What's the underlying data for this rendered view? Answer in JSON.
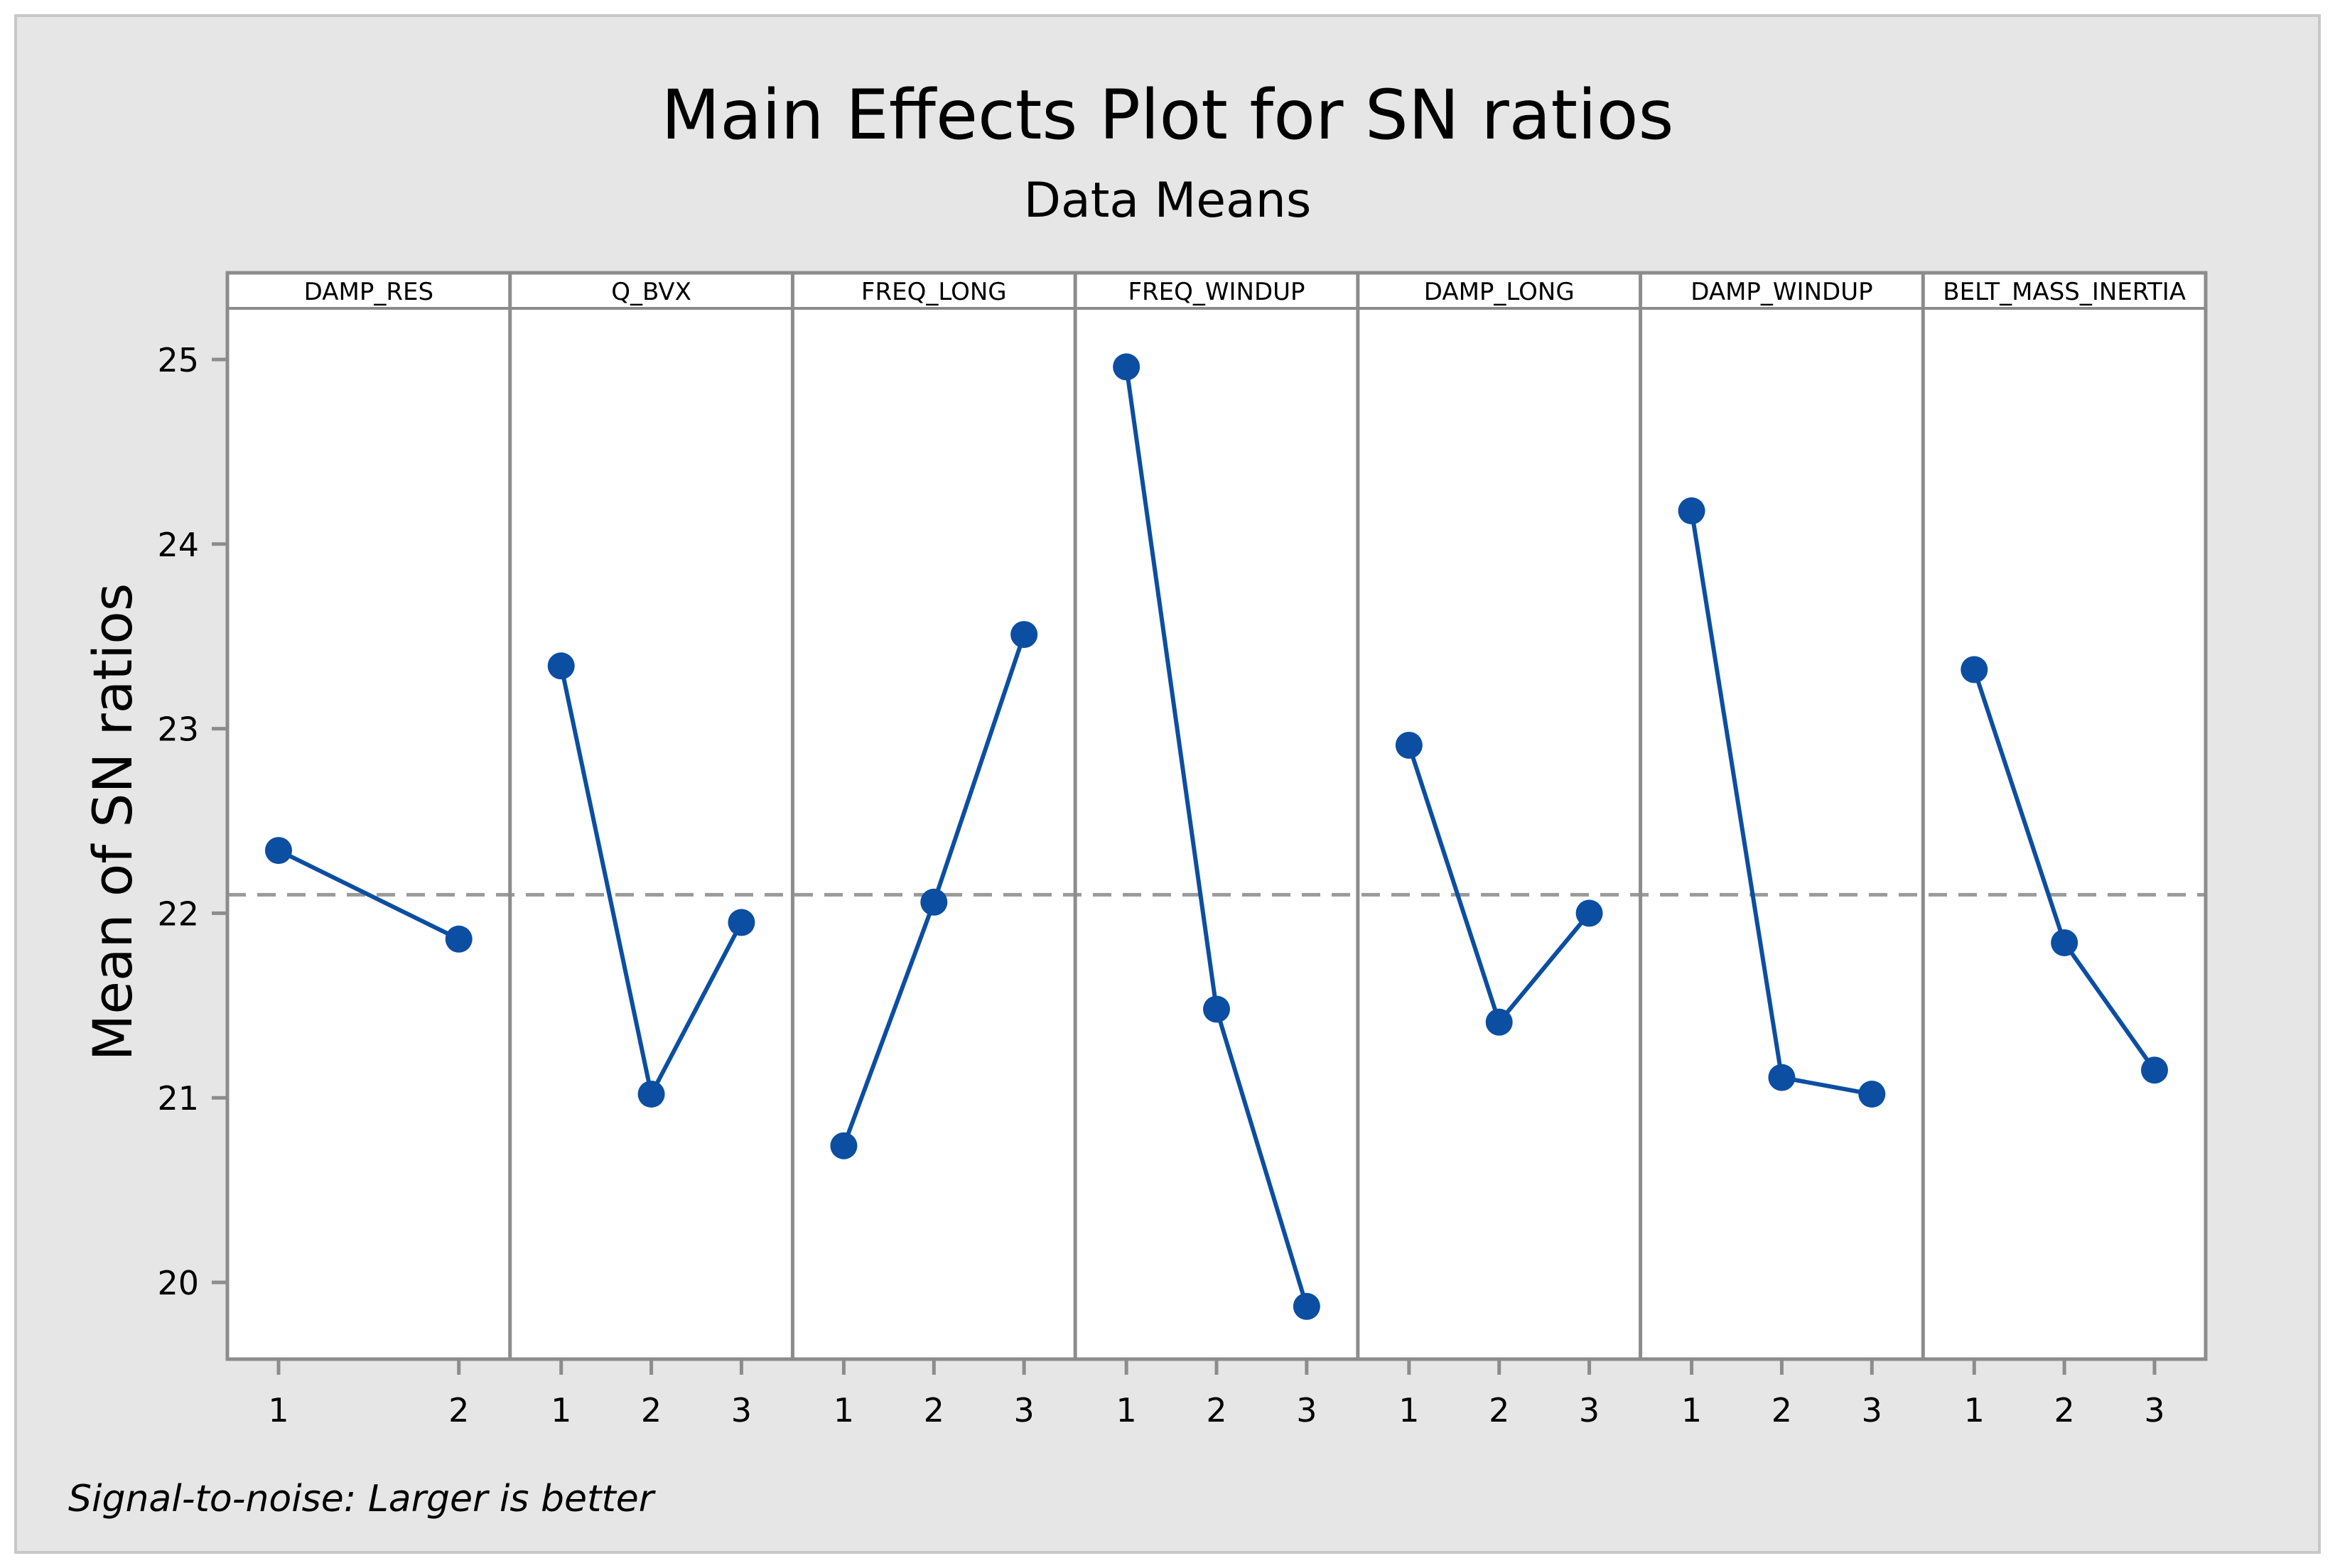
{
  "chart_data": {
    "type": "line",
    "title": "Main Effects Plot for SN ratios",
    "subtitle": "Data Means",
    "ylabel": "Mean of SN ratios",
    "xlabel": "",
    "ylim": [
      19.6,
      25.5
    ],
    "yticks": [
      20,
      21,
      22,
      23,
      24,
      25
    ],
    "overall_mean": 22.1,
    "footnote": "Signal-to-noise: Larger is better",
    "line_color": "#0b4ea2",
    "reference_color": "#9a9a9a",
    "panels": [
      {
        "name": "DAMP_RES",
        "levels": [
          "1",
          "2"
        ],
        "values": [
          22.34,
          21.86
        ]
      },
      {
        "name": "Q_BVX",
        "levels": [
          "1",
          "2",
          "3"
        ],
        "values": [
          23.34,
          21.02,
          21.95
        ]
      },
      {
        "name": "FREQ_LONG",
        "levels": [
          "1",
          "2",
          "3"
        ],
        "values": [
          20.74,
          22.06,
          23.51
        ]
      },
      {
        "name": "FREQ_WINDUP",
        "levels": [
          "1",
          "2",
          "3"
        ],
        "values": [
          24.96,
          21.48,
          19.87
        ]
      },
      {
        "name": "DAMP_LONG",
        "levels": [
          "1",
          "2",
          "3"
        ],
        "values": [
          22.91,
          21.41,
          22.0
        ]
      },
      {
        "name": "DAMP_WINDUP",
        "levels": [
          "1",
          "2",
          "3"
        ],
        "values": [
          24.18,
          21.11,
          21.02
        ]
      },
      {
        "name": "BELT_MASS_INERTIA",
        "levels": [
          "1",
          "2",
          "3"
        ],
        "values": [
          23.32,
          21.84,
          21.15
        ]
      }
    ]
  }
}
